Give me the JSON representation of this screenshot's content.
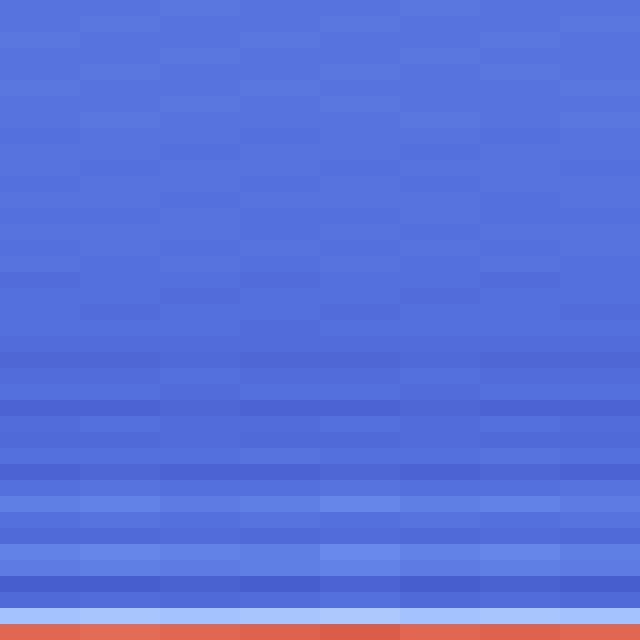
{
  "chart_data": {
    "type": "heatmap",
    "tick_labels": false,
    "zlim": [
      0,
      1
    ],
    "cells": [
      [
        0.13,
        0.13,
        0.14,
        0.13,
        0.13,
        0.14,
        0.13,
        0.13
      ],
      [
        0.13,
        0.14,
        0.13,
        0.13,
        0.14,
        0.13,
        0.13,
        0.14
      ],
      [
        0.14,
        0.13,
        0.13,
        0.14,
        0.13,
        0.13,
        0.14,
        0.13
      ],
      [
        0.13,
        0.13,
        0.14,
        0.13,
        0.13,
        0.14,
        0.13,
        0.13
      ],
      [
        0.13,
        0.14,
        0.13,
        0.13,
        0.14,
        0.13,
        0.14,
        0.13
      ],
      [
        0.14,
        0.13,
        0.13,
        0.14,
        0.13,
        0.13,
        0.13,
        0.14
      ],
      [
        0.13,
        0.13,
        0.14,
        0.13,
        0.14,
        0.13,
        0.13,
        0.13
      ],
      [
        0.13,
        0.14,
        0.13,
        0.13,
        0.13,
        0.14,
        0.13,
        0.14
      ],
      [
        0.12,
        0.13,
        0.13,
        0.12,
        0.13,
        0.13,
        0.12,
        0.13
      ],
      [
        0.13,
        0.13,
        0.12,
        0.13,
        0.13,
        0.12,
        0.13,
        0.13
      ],
      [
        0.13,
        0.12,
        0.13,
        0.13,
        0.12,
        0.13,
        0.13,
        0.12
      ],
      [
        0.12,
        0.13,
        0.13,
        0.12,
        0.13,
        0.12,
        0.13,
        0.13
      ],
      [
        0.13,
        0.13,
        0.12,
        0.13,
        0.13,
        0.13,
        0.12,
        0.13
      ],
      [
        0.12,
        0.12,
        0.13,
        0.12,
        0.12,
        0.13,
        0.12,
        0.12
      ],
      [
        0.13,
        0.13,
        0.13,
        0.12,
        0.13,
        0.12,
        0.13,
        0.13
      ],
      [
        0.12,
        0.13,
        0.12,
        0.13,
        0.12,
        0.13,
        0.12,
        0.13
      ],
      [
        0.13,
        0.12,
        0.13,
        0.12,
        0.13,
        0.12,
        0.13,
        0.12
      ],
      [
        0.11,
        0.12,
        0.12,
        0.11,
        0.12,
        0.12,
        0.11,
        0.12
      ],
      [
        0.12,
        0.12,
        0.11,
        0.12,
        0.12,
        0.11,
        0.12,
        0.12
      ],
      [
        0.12,
        0.11,
        0.12,
        0.12,
        0.11,
        0.12,
        0.12,
        0.11
      ],
      [
        0.12,
        0.12,
        0.12,
        0.11,
        0.12,
        0.12,
        0.12,
        0.12
      ],
      [
        0.11,
        0.11,
        0.11,
        0.11,
        0.11,
        0.11,
        0.11,
        0.11
      ],
      [
        0.09,
        0.09,
        0.1,
        0.09,
        0.09,
        0.1,
        0.09,
        0.09
      ],
      [
        0.11,
        0.11,
        0.12,
        0.11,
        0.11,
        0.12,
        0.11,
        0.11
      ],
      [
        0.12,
        0.12,
        0.11,
        0.12,
        0.12,
        0.11,
        0.12,
        0.12
      ],
      [
        0.08,
        0.08,
        0.09,
        0.08,
        0.08,
        0.09,
        0.08,
        0.08
      ],
      [
        0.11,
        0.12,
        0.11,
        0.11,
        0.12,
        0.11,
        0.12,
        0.11
      ],
      [
        0.1,
        0.1,
        0.11,
        0.1,
        0.1,
        0.11,
        0.1,
        0.1
      ],
      [
        0.12,
        0.12,
        0.12,
        0.13,
        0.12,
        0.12,
        0.13,
        0.12
      ],
      [
        0.08,
        0.09,
        0.08,
        0.08,
        0.09,
        0.08,
        0.09,
        0.08
      ],
      [
        0.12,
        0.13,
        0.12,
        0.12,
        0.13,
        0.12,
        0.12,
        0.13
      ],
      [
        0.16,
        0.17,
        0.15,
        0.16,
        0.18,
        0.16,
        0.17,
        0.15
      ],
      [
        0.12,
        0.13,
        0.12,
        0.13,
        0.12,
        0.13,
        0.12,
        0.13
      ],
      [
        0.1,
        0.1,
        0.11,
        0.1,
        0.11,
        0.1,
        0.11,
        0.1
      ],
      [
        0.17,
        0.18,
        0.17,
        0.16,
        0.19,
        0.17,
        0.18,
        0.16
      ],
      [
        0.15,
        0.16,
        0.15,
        0.16,
        0.17,
        0.15,
        0.16,
        0.15
      ],
      [
        0.06,
        0.06,
        0.07,
        0.06,
        0.08,
        0.06,
        0.07,
        0.06
      ],
      [
        0.1,
        0.11,
        0.1,
        0.11,
        0.12,
        0.1,
        0.11,
        0.1
      ],
      [
        0.36,
        0.37,
        0.36,
        0.37,
        0.38,
        0.36,
        0.37,
        0.36
      ],
      [
        0.86,
        0.85,
        0.86,
        0.87,
        0.88,
        0.86,
        0.87,
        0.86
      ]
    ]
  }
}
